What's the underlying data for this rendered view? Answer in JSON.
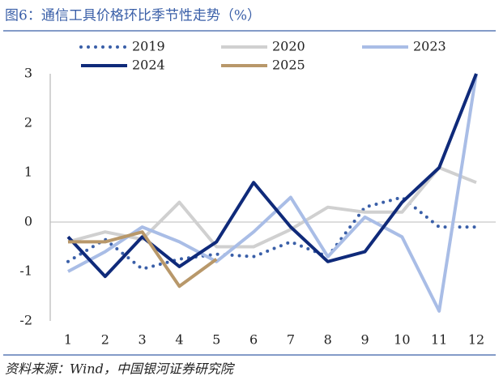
{
  "chart_data": {
    "type": "line",
    "title": "图6：通信工具价格环比季节性走势（%）",
    "source": "资料来源：Wind，中国银河证券研究院",
    "categories": [
      "1",
      "2",
      "3",
      "4",
      "5",
      "6",
      "7",
      "8",
      "9",
      "10",
      "11",
      "12"
    ],
    "series": [
      {
        "name": "2019",
        "color": "#3a5fa8",
        "dashed": true,
        "values": [
          -0.8,
          -0.35,
          -0.95,
          -0.75,
          -0.65,
          -0.7,
          -0.4,
          -0.7,
          0.3,
          0.5,
          -0.1,
          -0.1
        ]
      },
      {
        "name": "2020",
        "color": "#d0d0d0",
        "values": [
          -0.4,
          -0.2,
          -0.35,
          0.4,
          -0.5,
          -0.5,
          -0.15,
          0.3,
          0.2,
          0.2,
          1.1,
          0.8
        ]
      },
      {
        "name": "2023",
        "color": "#a9bde6",
        "values": [
          -1.0,
          -0.6,
          -0.1,
          -0.4,
          -0.8,
          -0.2,
          0.5,
          -0.7,
          0.1,
          -0.3,
          -1.8,
          3.0
        ]
      },
      {
        "name": "2024",
        "color": "#0f2a7a",
        "values": [
          -0.3,
          -1.1,
          -0.3,
          -0.9,
          -0.4,
          0.8,
          -0.1,
          -0.8,
          -0.6,
          0.4,
          1.1,
          3.0
        ]
      },
      {
        "name": "2025",
        "color": "#b8986a",
        "values": [
          -0.4,
          -0.4,
          -0.2,
          -1.3,
          -0.75,
          null,
          null,
          null,
          null,
          null,
          null,
          null
        ]
      }
    ],
    "ylim": [
      -2,
      3
    ],
    "yticks": [
      -2,
      -1,
      0,
      1,
      2,
      3
    ],
    "grid": false
  }
}
